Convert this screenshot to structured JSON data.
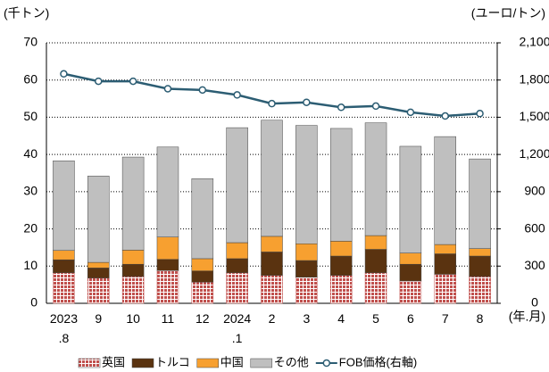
{
  "chart_data": {
    "type": "bar",
    "y_label": "(千トン)",
    "y2_label": "(ユーロ/トン)",
    "x_label": "(年.月)",
    "categories": [
      "2023\n.8",
      "9",
      "10",
      "11",
      "12",
      "2024\n.1",
      "2",
      "3",
      "4",
      "5",
      "6",
      "7",
      "8"
    ],
    "series": [
      {
        "name": "英国",
        "color": "#c0504d",
        "values": [
          8.2,
          6.8,
          7.2,
          8.8,
          5.7,
          8.2,
          7.5,
          7.0,
          7.5,
          8.2,
          6.0,
          7.8,
          7.2
        ]
      },
      {
        "name": "トルコ",
        "color": "#5a3310",
        "values": [
          3.5,
          2.7,
          3.3,
          3.0,
          3.0,
          3.8,
          6.3,
          4.5,
          5.2,
          6.3,
          4.5,
          5.5,
          5.5
        ]
      },
      {
        "name": "中国",
        "color": "#f7a030",
        "values": [
          2.5,
          1.5,
          3.8,
          6.0,
          3.3,
          4.3,
          4.2,
          4.5,
          4.0,
          3.7,
          3.0,
          2.5,
          2.0
        ]
      },
      {
        "name": "その他",
        "color": "#bfbfbf",
        "values": [
          24.1,
          23.2,
          25.0,
          24.2,
          21.5,
          30.9,
          31.2,
          31.8,
          30.3,
          30.3,
          28.7,
          29.0,
          24.1
        ]
      },
      {
        "name": "FOB価格(右軸)",
        "color": "#2c5d73",
        "type": "line",
        "axis": "y2",
        "values": [
          1850,
          1790,
          1790,
          1730,
          1720,
          1680,
          1610,
          1620,
          1580,
          1590,
          1540,
          1510,
          1530
        ]
      }
    ],
    "ylim": [
      0,
      70
    ],
    "yticks": [
      0,
      10,
      20,
      30,
      40,
      50,
      60,
      70
    ],
    "y2lim": [
      0,
      2100
    ],
    "y2ticks": [
      0,
      300,
      600,
      900,
      {
        "value": 1200,
        "label": "1,200"
      },
      {
        "value": 1500,
        "label": "1,500"
      },
      {
        "value": 1800,
        "label": "1,800"
      },
      {
        "value": 2100,
        "label": "2,100"
      }
    ],
    "grid": true,
    "legend": "bottom"
  }
}
